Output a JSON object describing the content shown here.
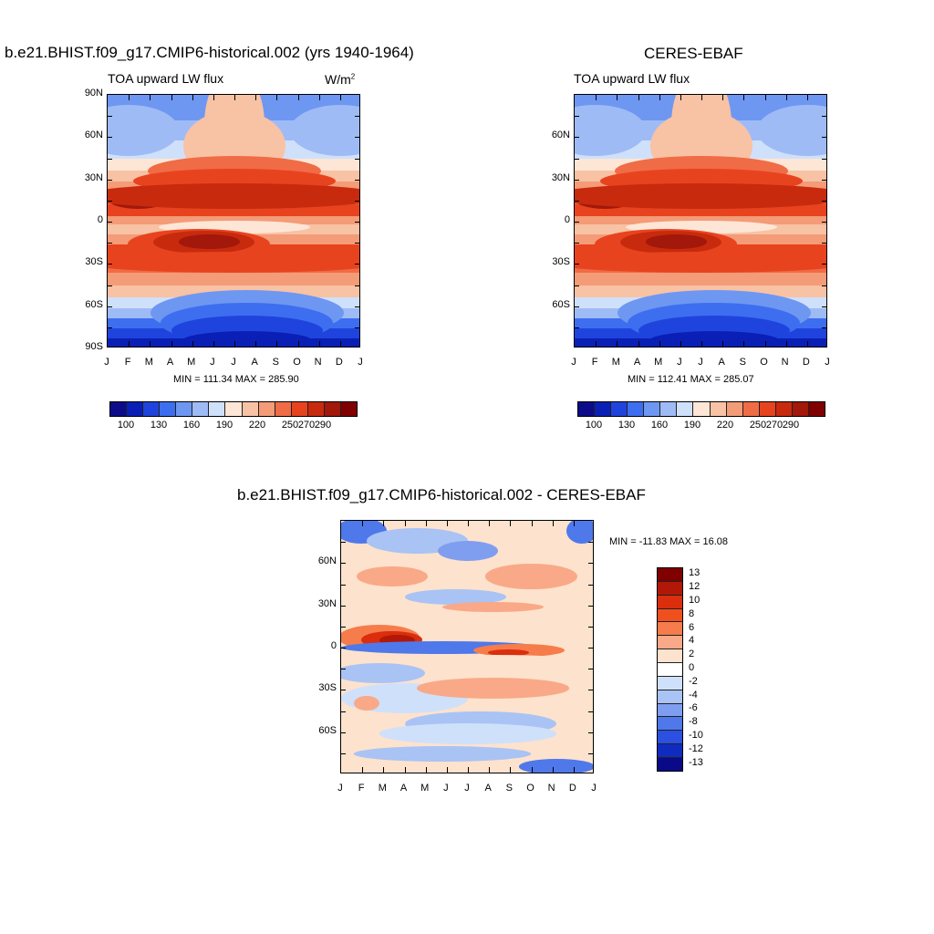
{
  "chart_data": [
    {
      "type": "heatmap",
      "title": "b.e21.BHIST.f09_g17.CMIP6-historical.002 (yrs 1940-1964)",
      "subtitle_left": "TOA upward LW flux",
      "units": "W/m",
      "units_exponent": "2",
      "x_tick_labels": [
        "J",
        "F",
        "M",
        "A",
        "M",
        "J",
        "J",
        "A",
        "S",
        "O",
        "N",
        "D",
        "J"
      ],
      "y_tick_labels": [
        "90N",
        "60N",
        "30N",
        "0",
        "30S",
        "60S",
        "90S"
      ],
      "stats": "MIN = 111.34 MAX = 285.90",
      "min": 111.34,
      "max": 285.9,
      "colorbar_labels": [
        "100",
        "130",
        "160",
        "190",
        "220",
        "250",
        "270",
        "290"
      ]
    },
    {
      "type": "heatmap",
      "title": "CERES-EBAF",
      "subtitle_left": "TOA upward LW flux",
      "x_tick_labels": [
        "J",
        "F",
        "M",
        "A",
        "M",
        "J",
        "J",
        "A",
        "S",
        "O",
        "N",
        "D",
        "J"
      ],
      "y_tick_labels": [
        "60N",
        "30N",
        "0",
        "30S",
        "60S"
      ],
      "stats": "MIN = 112.41 MAX = 285.07",
      "min": 112.41,
      "max": 285.07,
      "colorbar_labels": [
        "100",
        "130",
        "160",
        "190",
        "220",
        "250",
        "270",
        "290"
      ]
    },
    {
      "type": "heatmap",
      "title": "b.e21.BHIST.f09_g17.CMIP6-historical.002 - CERES-EBAF",
      "x_tick_labels": [
        "J",
        "F",
        "M",
        "A",
        "M",
        "J",
        "J",
        "A",
        "S",
        "O",
        "N",
        "D",
        "J"
      ],
      "y_tick_labels": [
        "60N",
        "30N",
        "0",
        "30S",
        "60S"
      ],
      "stats": "MIN = -11.83 MAX =  16.08",
      "min": -11.83,
      "max": 16.08,
      "colorbar_labels": [
        "13",
        "12",
        "10",
        "8",
        "6",
        "4",
        "2",
        "0",
        "-2",
        "-4",
        "-6",
        "-8",
        "-10",
        "-12",
        "-13"
      ]
    }
  ],
  "palette_abs": [
    "#0c0c88",
    "#0a1fb5",
    "#1f44dd",
    "#3d6ef0",
    "#6e97f2",
    "#9fbbf5",
    "#cfe0fb",
    "#fde6d6",
    "#f8c2a4",
    "#f49b77",
    "#f06c46",
    "#e8431f",
    "#c82a0d",
    "#a2180a",
    "#800000"
  ],
  "palette_diff": [
    "#800000",
    "#b11807",
    "#da2e0d",
    "#f04f1e",
    "#f67c4c",
    "#f9a987",
    "#fde2cd",
    "#ffffff",
    "#cfe0fb",
    "#a9c3f4",
    "#7f9eef",
    "#4f78ea",
    "#2c50e2",
    "#0f2bc0",
    "#0a0a88"
  ]
}
